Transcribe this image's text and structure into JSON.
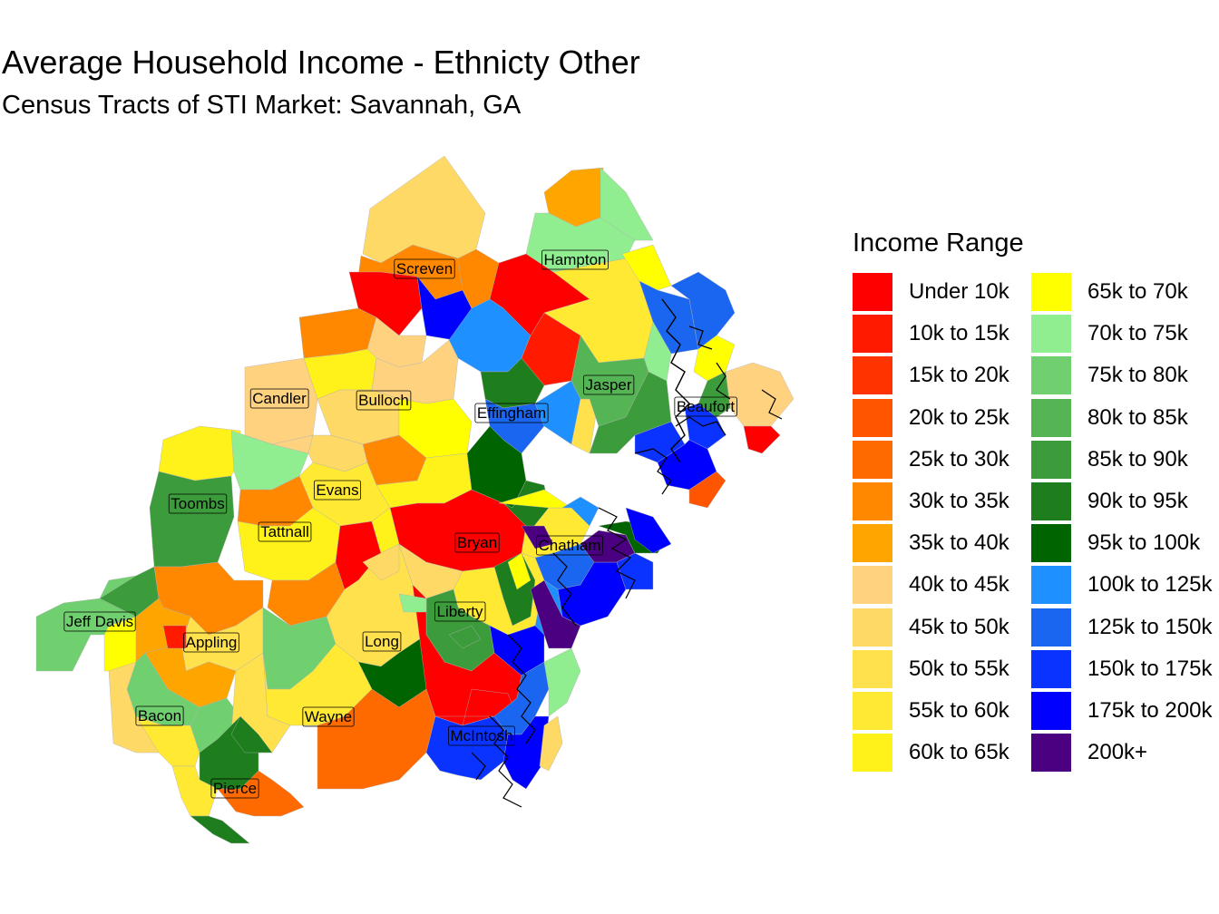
{
  "title": "Average Household Income - Ethnicty Other",
  "subtitle": "Census Tracts of STI Market: Savannah, GA",
  "legend": {
    "title": "Income Range",
    "items": [
      {
        "label": "Under 10k",
        "color": "#FF0000"
      },
      {
        "label": "10k to 15k",
        "color": "#FF1A00"
      },
      {
        "label": "15k to 20k",
        "color": "#FF3300"
      },
      {
        "label": "20k to 25k",
        "color": "#FF5500"
      },
      {
        "label": "25k to 30k",
        "color": "#FF6A00"
      },
      {
        "label": "30k to 35k",
        "color": "#FF8800"
      },
      {
        "label": "35k to 40k",
        "color": "#FFA500"
      },
      {
        "label": "40k to 45k",
        "color": "#FFD280"
      },
      {
        "label": "45k to 50k",
        "color": "#FFD966"
      },
      {
        "label": "50k to 55k",
        "color": "#FFE14D"
      },
      {
        "label": "55k to 60k",
        "color": "#FFE933"
      },
      {
        "label": "60k to 65k",
        "color": "#FFF21A"
      },
      {
        "label": "65k to 70k",
        "color": "#FFFF00"
      },
      {
        "label": "70k to 75k",
        "color": "#90EE90"
      },
      {
        "label": "75k to 80k",
        "color": "#70D070"
      },
      {
        "label": "80k to 85k",
        "color": "#55B555"
      },
      {
        "label": "85k to 90k",
        "color": "#3C9C3C"
      },
      {
        "label": "90k to 95k",
        "color": "#1E7E1E"
      },
      {
        "label": "95k to 100k",
        "color": "#006400"
      },
      {
        "label": "100k to 125k",
        "color": "#1E90FF"
      },
      {
        "label": "125k to 150k",
        "color": "#1A66F0"
      },
      {
        "label": "150k to 175k",
        "color": "#0A33FF"
      },
      {
        "label": "175k to 200k",
        "color": "#0000FF"
      },
      {
        "label": "200k+",
        "color": "#4B0082"
      }
    ]
  },
  "counties": [
    {
      "name": "Screven"
    },
    {
      "name": "Hampton"
    },
    {
      "name": "Candler"
    },
    {
      "name": "Bulloch"
    },
    {
      "name": "Effingham"
    },
    {
      "name": "Jasper"
    },
    {
      "name": "Beaufort"
    },
    {
      "name": "Toombs"
    },
    {
      "name": "Evans"
    },
    {
      "name": "Tattnall"
    },
    {
      "name": "Bryan"
    },
    {
      "name": "Chatham"
    },
    {
      "name": "Liberty"
    },
    {
      "name": "Jeff Davis"
    },
    {
      "name": "Appling"
    },
    {
      "name": "Long"
    },
    {
      "name": "Bacon"
    },
    {
      "name": "Wayne"
    },
    {
      "name": "McIntosh"
    },
    {
      "name": "Pierce"
    }
  ]
}
